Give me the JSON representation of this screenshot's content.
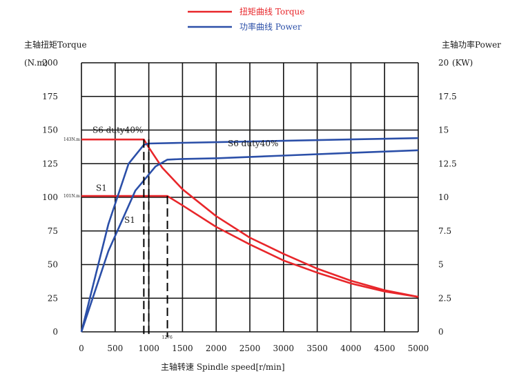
{
  "chart_data": {
    "type": "line",
    "legend": [
      {
        "label": "扭矩曲线 Torque",
        "color": "#e8262a"
      },
      {
        "label": "功率曲线 Power",
        "color": "#2b4fa8"
      }
    ],
    "legend_position": "top-center",
    "left_axis": {
      "label_line1": "主轴扭矩Torque",
      "label_line2": "(N.m)",
      "range": [
        0,
        200
      ],
      "ticks": [
        "0",
        "25",
        "50",
        "75",
        "100",
        "125",
        "150",
        "175",
        "200"
      ]
    },
    "right_axis": {
      "label": "主轴功率Power",
      "unit": "(KW)",
      "range": [
        0,
        20
      ],
      "ticks": [
        "0",
        "2.5",
        "5",
        "7.5",
        "10",
        "12.5",
        "15",
        "17.5",
        "20"
      ]
    },
    "x_axis": {
      "label": "主轴转速 Spindle speed[r/min]",
      "range": [
        0,
        5000
      ],
      "ticks": [
        "0",
        "500",
        "1000",
        "1500",
        "2000",
        "2500",
        "3000",
        "3500",
        "4000",
        "4500",
        "5000"
      ]
    },
    "grid": true,
    "annotations": {
      "torque_s6": "143N.m",
      "torque_s1": "101N.m",
      "speed_marker": "1276",
      "label_s6_left": "S6 duty40%",
      "label_s6_right": "S6 duty40%",
      "label_s1_top": "S1",
      "label_s1_curve": "S1"
    },
    "series": [
      {
        "name": "S6 duty40%",
        "kind": "torque",
        "axis": "left",
        "x": [
          0,
          926,
          1000,
          1200,
          1500,
          2000,
          2500,
          3000,
          3500,
          4000,
          4500,
          5000
        ],
        "y": [
          143,
          143,
          137,
          122,
          106,
          86,
          70,
          58,
          47,
          38,
          31,
          26
        ]
      },
      {
        "name": "S1",
        "kind": "torque",
        "axis": "left",
        "x": [
          0,
          1276,
          1500,
          2000,
          2500,
          3000,
          3500,
          4000,
          4500,
          5000
        ],
        "y": [
          101,
          101,
          94,
          78,
          65,
          53,
          44,
          36,
          30,
          26
        ]
      },
      {
        "name": "S6 duty40%",
        "kind": "power",
        "axis": "right",
        "x": [
          0,
          400,
          700,
          926,
          1000,
          1500,
          2000,
          3000,
          4000,
          5000
        ],
        "y": [
          0,
          8,
          12.5,
          13.9,
          14.0,
          14.05,
          14.1,
          14.2,
          14.3,
          14.4
        ]
      },
      {
        "name": "S1",
        "kind": "power",
        "axis": "right",
        "x": [
          0,
          400,
          800,
          1100,
          1276,
          1500,
          2000,
          3000,
          4000,
          5000
        ],
        "y": [
          0,
          6,
          10.5,
          12.3,
          12.8,
          12.85,
          12.9,
          13.1,
          13.3,
          13.5
        ]
      }
    ],
    "vertical_markers": [
      926,
      1000,
      1276
    ]
  }
}
